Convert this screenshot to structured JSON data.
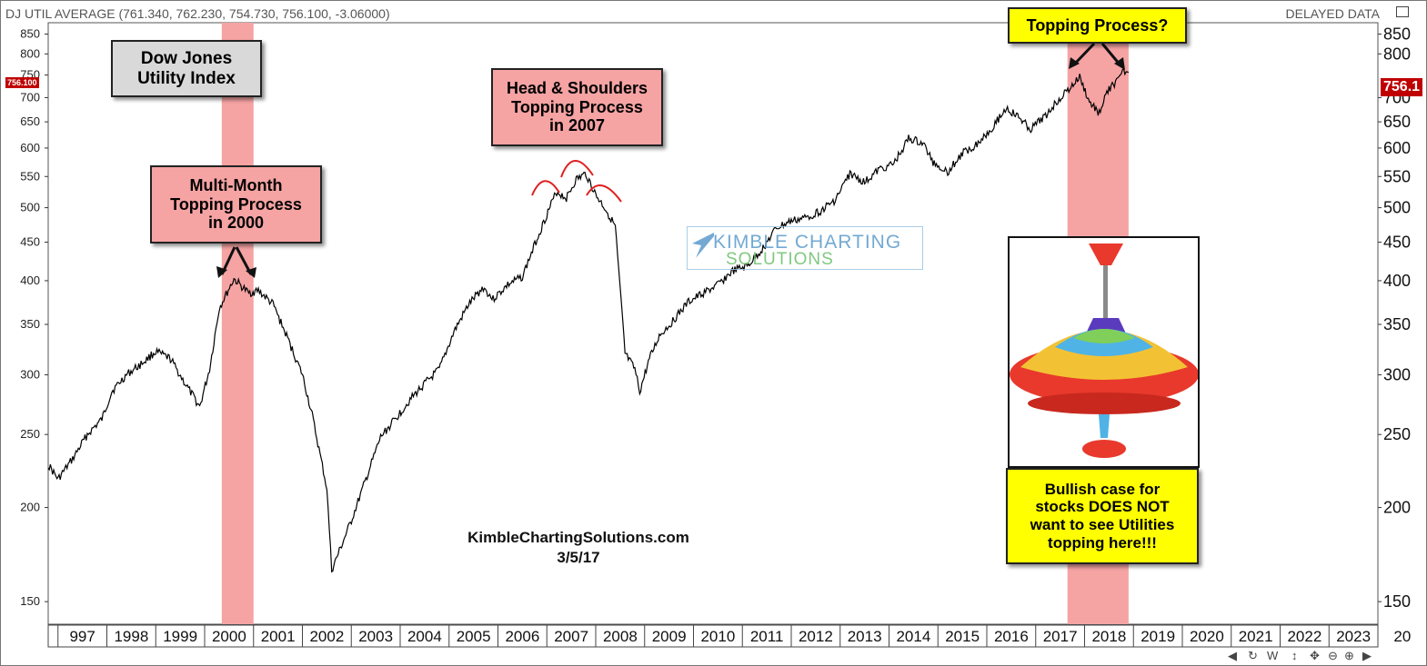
{
  "header": {
    "title": "DJ UTIL AVERAGE (761.340, 762.230, 754.730, 756.100, -3.06000)",
    "delayed": "DELAYED DATA"
  },
  "price_tags": {
    "left": "756.100",
    "right": "756.1"
  },
  "callouts": {
    "dow_jones": [
      "Dow Jones",
      "Utility Index"
    ],
    "multi_month": [
      "Multi-Month",
      "Topping Process",
      "in 2000"
    ],
    "head_shoulders": [
      "Head & Shoulders",
      "Topping Process",
      "in 2007"
    ],
    "topping_q": [
      "Topping Process?"
    ],
    "bullish": [
      "Bullish case for",
      "stocks DOES NOT",
      "want to see Utilities",
      "topping here!!!"
    ]
  },
  "credit": {
    "site": "KimbleChartingSolutions.com",
    "date": "3/5/17"
  },
  "watermark": {
    "line1": "KIMBLE CHARTING",
    "line2": "SOLUTIONS"
  },
  "icons": [
    "spinning-top-toy",
    "watermark-arrow-logo",
    "scroll-left-icon",
    "scroll-right-icon",
    "refresh-icon",
    "move-icon",
    "zoom-out-icon",
    "zoom-in-icon"
  ],
  "colors": {
    "highlight": "#f5a3a3",
    "price": "#c00000",
    "note": "#ffff00",
    "arcs": "#e02020"
  },
  "chart_data": {
    "type": "line",
    "title": "DJ UTIL AVERAGE",
    "scale": "log",
    "ylim": [
      140,
      880
    ],
    "xlim": [
      1996.8,
      2024.0
    ],
    "yticks_left": [
      "850",
      "800",
      "750",
      "700",
      "650",
      "600",
      "550",
      "500",
      "450",
      "400",
      "350",
      "300",
      "250",
      "200",
      "150"
    ],
    "yticks_right": [
      "850",
      "800",
      "700",
      "650",
      "600",
      "550",
      "500",
      "450",
      "400",
      "350",
      "300",
      "250",
      "200",
      "150"
    ],
    "xticks": [
      "997",
      "1998",
      "1999",
      "2000",
      "2001",
      "2002",
      "2003",
      "2004",
      "2005",
      "2006",
      "2007",
      "2008",
      "2009",
      "2010",
      "2011",
      "2012",
      "2013",
      "2014",
      "2015",
      "2016",
      "2017",
      "2018",
      "2019",
      "2020",
      "2021",
      "2022",
      "2023",
      "20"
    ],
    "highlight_ranges": [
      [
        2000.35,
        2001.0
      ],
      [
        2017.65,
        2018.9
      ]
    ],
    "series": [
      {
        "x": [
          1996.8,
          1997.0,
          1997.3,
          1997.6,
          1997.9,
          1998.1,
          1998.4,
          1998.7,
          1999.0,
          1999.3,
          1999.6,
          1999.9,
          2000.1,
          2000.3,
          2000.6,
          2000.9,
          2001.1,
          2001.4,
          2001.7,
          2002.0,
          2002.2,
          2002.5,
          2002.6,
          2002.8,
          2003.0,
          2003.3,
          2003.6,
          2003.9,
          2004.2,
          2004.5,
          2004.8,
          2005.1,
          2005.4,
          2005.7,
          2005.9,
          2006.2,
          2006.5,
          2006.8,
          2007.0,
          2007.2,
          2007.4,
          2007.6,
          2007.8,
          2008.0,
          2008.2,
          2008.4,
          2008.6,
          2008.8,
          2008.9,
          2009.1,
          2009.3,
          2009.6,
          2009.9,
          2010.2,
          2010.5,
          2010.8,
          2011.1,
          2011.4,
          2011.7,
          2012.0,
          2012.3,
          2012.6,
          2012.9,
          2013.2,
          2013.5,
          2013.8,
          2014.1,
          2014.4,
          2014.7,
          2014.9,
          2015.2,
          2015.5,
          2015.8,
          2016.1,
          2016.4,
          2016.7,
          2016.9,
          2017.2,
          2017.5,
          2017.7,
          2017.9,
          2018.1,
          2018.3,
          2018.5,
          2018.7,
          2018.8,
          2018.9
        ],
        "y": [
          228,
          218,
          232,
          250,
          262,
          285,
          300,
          310,
          322,
          315,
          292,
          272,
          305,
          368,
          402,
          385,
          388,
          372,
          335,
          300,
          265,
          212,
          165,
          178,
          192,
          218,
          248,
          262,
          278,
          292,
          305,
          342,
          372,
          392,
          378,
          395,
          405,
          455,
          490,
          525,
          515,
          545,
          555,
          520,
          498,
          472,
          320,
          305,
          285,
          315,
          338,
          355,
          375,
          385,
          395,
          412,
          418,
          440,
          470,
          480,
          485,
          495,
          512,
          555,
          540,
          562,
          572,
          618,
          608,
          575,
          558,
          590,
          608,
          638,
          678,
          655,
          635,
          662,
          700,
          720,
          745,
          690,
          668,
          720,
          738,
          758,
          756
        ]
      }
    ]
  }
}
